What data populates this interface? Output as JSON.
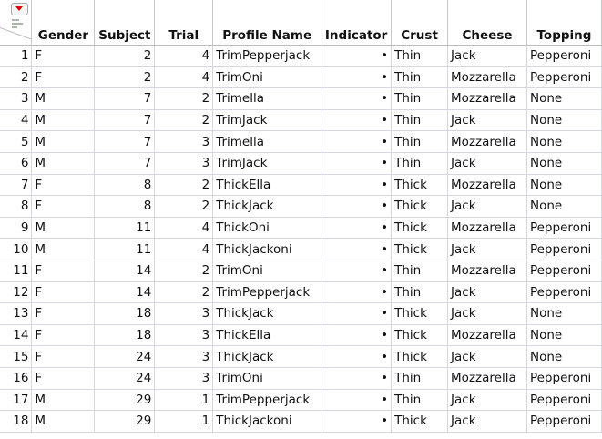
{
  "columns": [
    "Gender",
    "Subject",
    "Trial",
    "Profile Name",
    "Indicator",
    "Crust",
    "Cheese",
    "Topping"
  ],
  "indicator_glyph": "•",
  "rows": [
    [
      "1",
      "F",
      "2",
      "4",
      "TrimPepperjack",
      "•",
      "Thin",
      "Jack",
      "Pepperoni"
    ],
    [
      "2",
      "F",
      "2",
      "4",
      "TrimOni",
      "•",
      "Thin",
      "Mozzarella",
      "Pepperoni"
    ],
    [
      "3",
      "M",
      "7",
      "2",
      "Trimella",
      "•",
      "Thin",
      "Mozzarella",
      "None"
    ],
    [
      "4",
      "M",
      "7",
      "2",
      "TrimJack",
      "•",
      "Thin",
      "Jack",
      "None"
    ],
    [
      "5",
      "M",
      "7",
      "3",
      "Trimella",
      "•",
      "Thin",
      "Mozzarella",
      "None"
    ],
    [
      "6",
      "M",
      "7",
      "3",
      "TrimJack",
      "•",
      "Thin",
      "Jack",
      "None"
    ],
    [
      "7",
      "F",
      "8",
      "2",
      "ThickElla",
      "•",
      "Thick",
      "Mozzarella",
      "None"
    ],
    [
      "8",
      "F",
      "8",
      "2",
      "ThickJack",
      "•",
      "Thick",
      "Jack",
      "None"
    ],
    [
      "9",
      "M",
      "11",
      "4",
      "ThickOni",
      "•",
      "Thick",
      "Mozzarella",
      "Pepperoni"
    ],
    [
      "10",
      "M",
      "11",
      "4",
      "ThickJackoni",
      "•",
      "Thick",
      "Jack",
      "Pepperoni"
    ],
    [
      "11",
      "F",
      "14",
      "2",
      "TrimOni",
      "•",
      "Thin",
      "Mozzarella",
      "Pepperoni"
    ],
    [
      "12",
      "F",
      "14",
      "2",
      "TrimPepperjack",
      "•",
      "Thin",
      "Jack",
      "Pepperoni"
    ],
    [
      "13",
      "F",
      "18",
      "3",
      "ThickJack",
      "•",
      "Thick",
      "Jack",
      "None"
    ],
    [
      "14",
      "F",
      "18",
      "3",
      "ThickElla",
      "•",
      "Thick",
      "Mozzarella",
      "None"
    ],
    [
      "15",
      "F",
      "24",
      "3",
      "ThickJack",
      "•",
      "Thick",
      "Jack",
      "None"
    ],
    [
      "16",
      "F",
      "24",
      "3",
      "TrimOni",
      "•",
      "Thin",
      "Mozzarella",
      "Pepperoni"
    ],
    [
      "17",
      "M",
      "29",
      "1",
      "TrimPepperjack",
      "•",
      "Thin",
      "Jack",
      "Pepperoni"
    ],
    [
      "18",
      "M",
      "29",
      "1",
      "ThickJackoni",
      "•",
      "Thick",
      "Jack",
      "Pepperoni"
    ]
  ]
}
